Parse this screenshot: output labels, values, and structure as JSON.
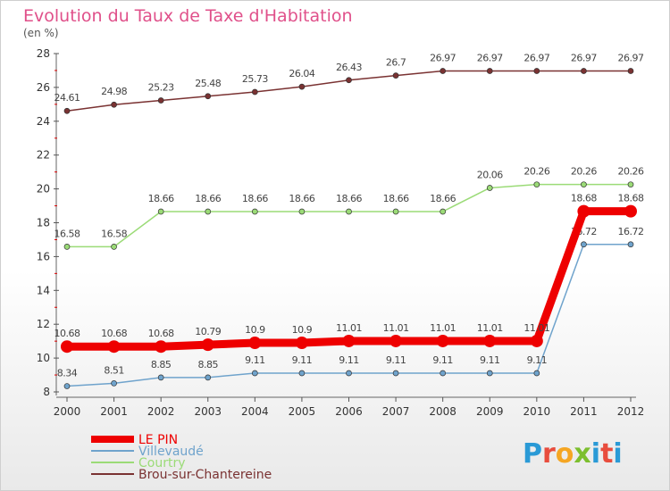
{
  "title": "Evolution du Taux de Taxe d'Habitation",
  "subtitle": "(en %)",
  "logo": {
    "letters": [
      "P",
      "r",
      "o",
      "x",
      "i",
      "t",
      "i"
    ],
    "colors": [
      "#2a9ad6",
      "#e84c3d",
      "#f5a623",
      "#7cbf2e",
      "#2a9ad6",
      "#e84c3d",
      "#2a9ad6"
    ]
  },
  "chart_data": {
    "type": "line",
    "title": "Evolution du Taux de Taxe d'Habitation",
    "ylabel": "(en %)",
    "xlabel": "",
    "ylim": [
      8,
      28
    ],
    "yticks": [
      "8",
      "10",
      "12",
      "14",
      "16",
      "18",
      "20",
      "22",
      "24",
      "26",
      "28"
    ],
    "grid": false,
    "legend": "bottom-left",
    "x": [
      "2000",
      "2001",
      "2002",
      "2003",
      "2004",
      "2005",
      "2006",
      "2007",
      "2008",
      "2009",
      "2010",
      "2011",
      "2012"
    ],
    "series": [
      {
        "name": "LE PIN",
        "color": "#ee0000",
        "values": [
          10.68,
          10.68,
          10.68,
          10.79,
          10.9,
          10.9,
          11.01,
          11.01,
          11.01,
          11.01,
          11.01,
          18.68,
          18.68
        ],
        "labels": [
          "10.68",
          "10.68",
          "10.68",
          "10.79",
          "10.9",
          "10.9",
          "11.01",
          "11.01",
          "11.01",
          "11.01",
          "11.01",
          "18.68",
          "18.68"
        ]
      },
      {
        "name": "Villevaudé",
        "color": "#6fa3cc",
        "values": [
          8.34,
          8.51,
          8.85,
          8.85,
          9.11,
          9.11,
          9.11,
          9.11,
          9.11,
          9.11,
          9.11,
          16.72,
          16.72
        ],
        "labels": [
          "8.34",
          "8.51",
          "8.85",
          "8.85",
          "9.11",
          "9.11",
          "9.11",
          "9.11",
          "9.11",
          "9.11",
          "9.11",
          "16.72",
          "16.72"
        ]
      },
      {
        "name": "Courtry",
        "color": "#9bdb77",
        "values": [
          16.58,
          16.58,
          18.66,
          18.66,
          18.66,
          18.66,
          18.66,
          18.66,
          18.66,
          20.06,
          20.26,
          20.26,
          20.26
        ],
        "labels": [
          "16.58",
          "16.58",
          "18.66",
          "18.66",
          "18.66",
          "18.66",
          "18.66",
          "18.66",
          "18.66",
          "20.06",
          "20.26",
          "20.26",
          "20.26"
        ]
      },
      {
        "name": "Brou-sur-Chantereine",
        "color": "#7a3232",
        "values": [
          24.61,
          24.98,
          25.23,
          25.48,
          25.73,
          26.04,
          26.43,
          26.7,
          26.97,
          26.97,
          26.97,
          26.97,
          26.97
        ],
        "labels": [
          "24.61",
          "24.98",
          "25.23",
          "25.48",
          "25.73",
          "26.04",
          "26.43",
          "26.7",
          "26.97",
          "26.97",
          "26.97",
          "26.97",
          "26.97"
        ]
      }
    ]
  }
}
